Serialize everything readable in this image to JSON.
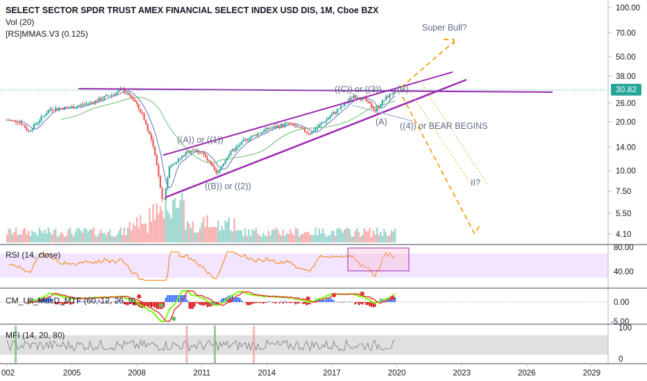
{
  "header": {
    "title": "SELECT SECTOR SPDR TRUST AMEX FINANCIAL SELECT INDEX USD DIS, 1M, Cboe BZX",
    "indicator_1": "Vol (20)",
    "indicator_2": "[RS]MMAS.V3 (0.125)"
  },
  "last_price": "30.82",
  "colors": {
    "up": "#26a69a",
    "down": "#ef5350",
    "wedge": "#9c27b0",
    "projection": "#f59f0c",
    "annotation": "#5d6a86",
    "rsi_fill": "#f3e5ff"
  },
  "panels": {
    "rsi": {
      "label": "RSI (14, close)",
      "ticks": [
        "80.00",
        "40.00"
      ]
    },
    "macd": {
      "label": "CM_Ult_MacD_MTF (60, 12, 26, 9)",
      "ticks": [
        "0.00",
        "-5.00"
      ]
    },
    "mfi": {
      "label": "MFI (14, 20, 80)",
      "ticks": [
        "100",
        "0"
      ]
    }
  },
  "annotations": {
    "super_bull": "Super Bull?",
    "c_or_3": "((C)) or ((3))",
    "b": "(B)",
    "a": "(A)",
    "bear": "((4)) or BEAR BEGINS",
    "a_or_1": "((A)) or ((1))",
    "b_or_2": "((B)) or ((2))",
    "ii": "II?"
  },
  "chart_data": {
    "type": "candlestick",
    "title": "SELECT SECTOR SPDR TRUST AMEX FINANCIAL SELECT INDEX USD DIS, 1M, Cboe BZX",
    "y_scale": "log",
    "y_ticks": [
      "100.00",
      "70.00",
      "50.00",
      "38.00",
      "26.00",
      "20.00",
      "14.00",
      "10.00",
      "7.50",
      "5.50",
      "4.10"
    ],
    "x_ticks": [
      "002",
      "2005",
      "2008",
      "2011",
      "2014",
      "2017",
      "2020",
      "2023",
      "2026",
      "2029"
    ],
    "last_close": 30.82,
    "price_series": [
      {
        "x": 2002.0,
        "y": 20.5
      },
      {
        "x": 2002.6,
        "y": 20.0
      },
      {
        "x": 2003.0,
        "y": 17.5
      },
      {
        "x": 2003.5,
        "y": 20.5
      },
      {
        "x": 2004.0,
        "y": 24.0
      },
      {
        "x": 2005.0,
        "y": 24.5
      },
      {
        "x": 2006.0,
        "y": 26.5
      },
      {
        "x": 2007.0,
        "y": 30.0
      },
      {
        "x": 2007.3,
        "y": 31.5
      },
      {
        "x": 2007.8,
        "y": 28.0
      },
      {
        "x": 2008.3,
        "y": 21.5
      },
      {
        "x": 2008.7,
        "y": 15.0
      },
      {
        "x": 2009.0,
        "y": 9.5
      },
      {
        "x": 2009.2,
        "y": 6.3
      },
      {
        "x": 2009.5,
        "y": 10.5
      },
      {
        "x": 2010.0,
        "y": 12.0
      },
      {
        "x": 2010.5,
        "y": 13.5
      },
      {
        "x": 2011.0,
        "y": 13.0
      },
      {
        "x": 2011.7,
        "y": 9.5
      },
      {
        "x": 2012.2,
        "y": 12.5
      },
      {
        "x": 2013.0,
        "y": 15.5
      },
      {
        "x": 2014.0,
        "y": 18.0
      },
      {
        "x": 2015.0,
        "y": 19.5
      },
      {
        "x": 2016.0,
        "y": 17.0
      },
      {
        "x": 2016.9,
        "y": 21.5
      },
      {
        "x": 2017.5,
        "y": 25.0
      },
      {
        "x": 2018.0,
        "y": 29.0
      },
      {
        "x": 2018.5,
        "y": 27.5
      },
      {
        "x": 2019.0,
        "y": 23.5
      },
      {
        "x": 2019.5,
        "y": 28.0
      },
      {
        "x": 2019.9,
        "y": 30.8
      }
    ]
  }
}
